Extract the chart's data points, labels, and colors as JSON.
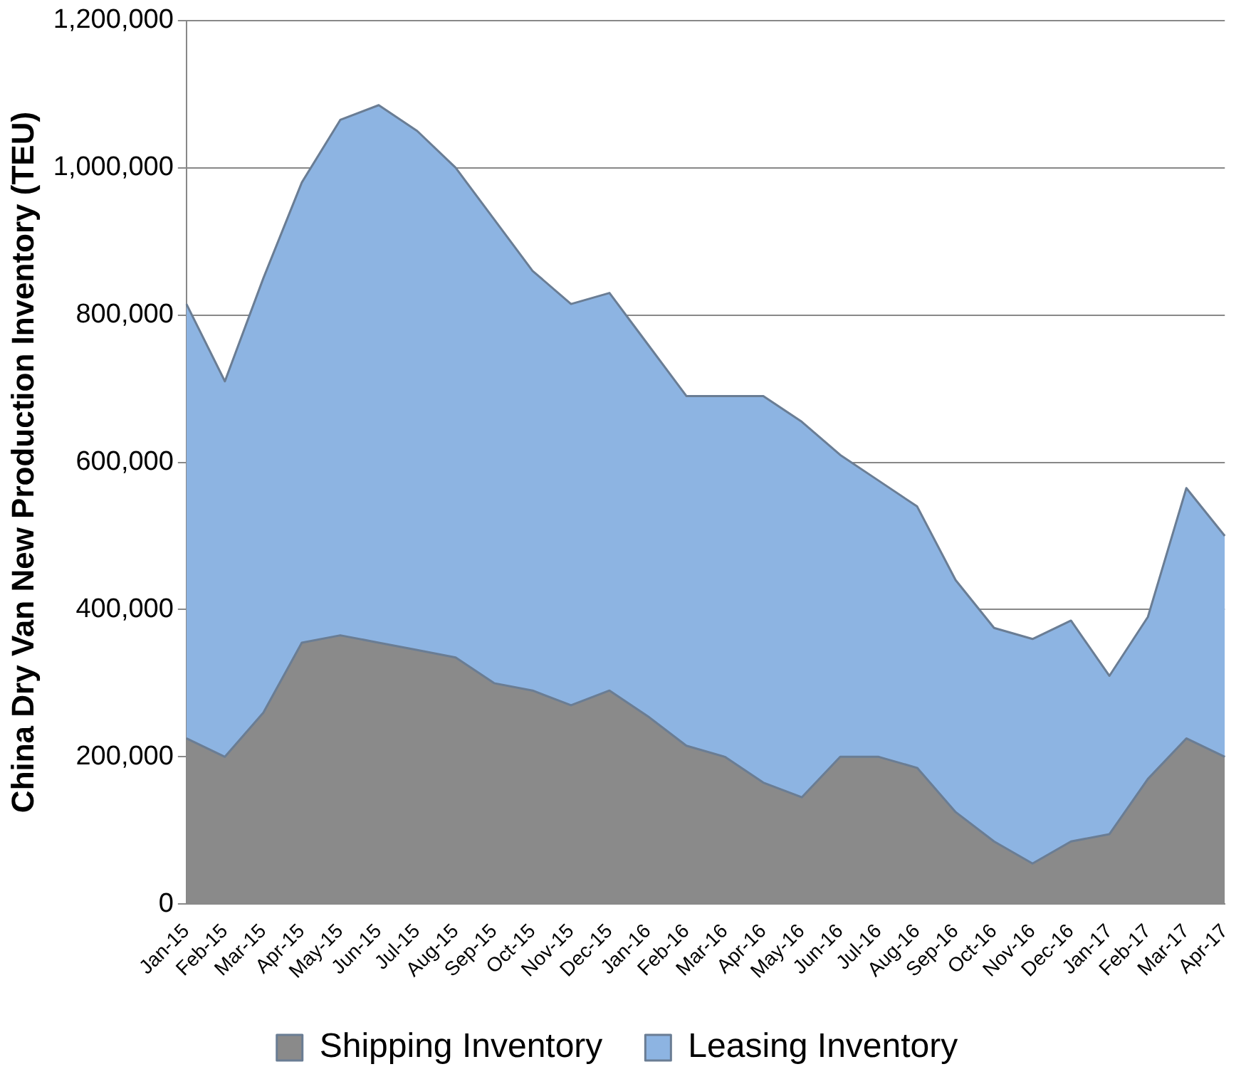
{
  "chart_data": {
    "type": "area",
    "stacked": true,
    "ylabel": "China Dry Van New Production Inventory (TEU)",
    "categories": [
      "Jan-15",
      "Feb-15",
      "Mar-15",
      "Apr-15",
      "May-15",
      "Jun-15",
      "Jul-15",
      "Aug-15",
      "Sep-15",
      "Oct-15",
      "Nov-15",
      "Dec-15",
      "Jan-16",
      "Feb-16",
      "Mar-16",
      "Apr-16",
      "May-16",
      "Jun-16",
      "Jul-16",
      "Aug-16",
      "Sep-16",
      "Oct-16",
      "Nov-16",
      "Dec-16",
      "Jan-17",
      "Feb-17",
      "Mar-17",
      "Apr-17"
    ],
    "series": [
      {
        "name": "Shipping Inventory",
        "color": "#8a8a8a",
        "values": [
          225000,
          200000,
          260000,
          355000,
          365000,
          355000,
          345000,
          335000,
          300000,
          290000,
          270000,
          290000,
          255000,
          215000,
          200000,
          165000,
          145000,
          200000,
          200000,
          185000,
          125000,
          85000,
          55000,
          85000,
          95000,
          170000,
          225000,
          200000
        ]
      },
      {
        "name": "Leasing Inventory",
        "color": "#8db4e2",
        "values": [
          590000,
          510000,
          590000,
          625000,
          700000,
          730000,
          705000,
          665000,
          630000,
          570000,
          545000,
          540000,
          505000,
          475000,
          490000,
          525000,
          510000,
          410000,
          375000,
          355000,
          315000,
          290000,
          305000,
          300000,
          215000,
          220000,
          340000,
          300000
        ]
      }
    ],
    "ylim": [
      0,
      1200000
    ],
    "yticks": [
      0,
      {
        "value": 200000,
        "label": "200,000"
      },
      {
        "value": 400000,
        "label": "400,000"
      },
      {
        "value": 600000,
        "label": "600,000"
      },
      {
        "value": 800000,
        "label": "800,000"
      },
      {
        "value": 1000000,
        "label": "1,000,000"
      },
      {
        "value": 1200000,
        "label": "1,200,000"
      }
    ],
    "grid": "y",
    "legend": "bottom"
  }
}
